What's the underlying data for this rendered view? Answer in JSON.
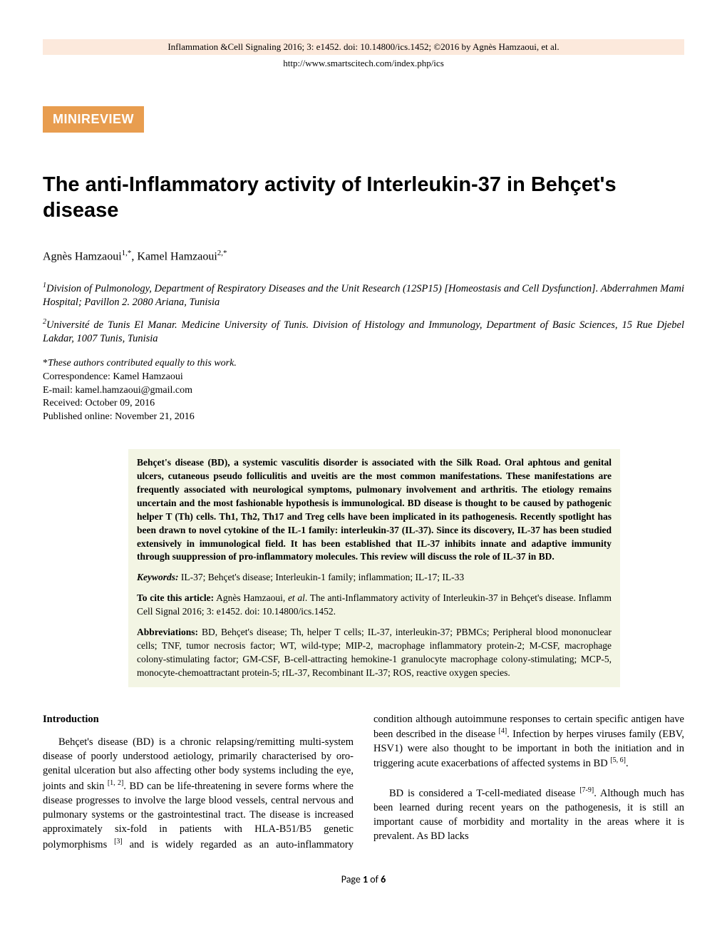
{
  "header": {
    "citation": "Inflammation &Cell Signaling 2016; 3: e1452. doi: 10.14800/ics.1452; ©2016 by Agnès Hamzaoui, et al.",
    "url": "http://www.smartscitech.com/index.php/ics"
  },
  "badge": "MINIREVIEW",
  "title": "The anti-Inflammatory activity of Interleukin-37 in Behçet's disease",
  "authors": {
    "a1_name": "Agnès Hamzaoui",
    "a1_sup": "1,*",
    "sep": ", ",
    "a2_name": "Kamel Hamzaoui",
    "a2_sup": "2,*"
  },
  "affiliations": {
    "a1_sup": "1",
    "a1_text": "Division of Pulmonology, Department of Respiratory Diseases and the Unit Research (12SP15) [Homeostasis and Cell Dysfunction]. Abderrahmen Mami Hospital; Pavillon 2. 2080 Ariana, Tunisia",
    "a2_sup": "2",
    "a2_text": "Université de Tunis El Manar. Medicine University of Tunis. Division of Histology and Immunology, Department of Basic Sciences, 15 Rue Djebel Lakdar, 1007 Tunis, Tunisia"
  },
  "meta": {
    "note_star": "*",
    "note": "These authors contributed equally to this work.",
    "corr_label": "Correspondence: ",
    "corr_name": "Kamel Hamzaoui",
    "email_label": "E-mail: ",
    "email": "kamel.hamzaoui@gmail.com",
    "received_label": "Received: ",
    "received": "October 09, 2016",
    "published_label": "Published online: ",
    "published": "November 21, 2016"
  },
  "abstract": {
    "main": "Behçet's disease (BD), a systemic vasculitis disorder is associated with the Silk Road. Oral aphtous and genital ulcers, cutaneous pseudo folliculitis and uveitis are the most common manifestations. These manifestations are frequently associated with neurological symptoms, pulmonary involvement and arthritis. The etiology remains uncertain and the most fashionable hypothesis is immunological. BD disease is thought to be caused by pathogenic helper T (Th) cells. Th1, Th2, Th17 and Treg cells have been implicated in its pathogenesis. Recently spotlight has been drawn to novel cytokine of the IL-1 family: interleukin-37 (IL-37). Since its discovery, IL-37 has been studied extensively in immunological field. It has been established that IL-37 inhibits innate and adaptive immunity through suuppression of pro-inflammatory molecules. This review will discuss the role of IL-37 in BD.",
    "keywords_label": "Keywords:",
    "keywords": " IL-37; Behçet's disease; Interleukin-1 family; inflammation; IL-17; IL-33",
    "cite_label": "To cite this article:",
    "cite_authors": " Agnès Hamzaoui, ",
    "cite_etal": "et al",
    "cite_rest": ". The anti-Inflammatory activity of Interleukin-37 in Behçet's disease. Inflamm Cell Signal 2016; 3: e1452. doi: 10.14800/ics.1452.",
    "abbrev_label": "Abbreviations:",
    "abbrev": " BD, Behçet's disease; Th, helper T cells; IL-37, interleukin-37; PBMCs; Peripheral blood mononuclear cells; TNF, tumor necrosis factor; WT, wild-type; MIP-2, macrophage inflammatory protein-2; M-CSF, macrophage colony-stimulating factor; GM-CSF, B-cell-attracting hemokine-1 granulocyte macrophage colony-stimulating; MCP-5, monocyte-chemoattractant protein-5; rIL-37, Recombinant IL-37; ROS, reactive oxygen species."
  },
  "body": {
    "intro_head": "Introduction",
    "p1a": "Behçet's disease (BD) is a chronic relapsing/remitting multi-system disease of poorly understood aetiology, primarily characterised by oro-genital ulceration but also affecting other body systems including the eye, joints and skin ",
    "p1_ref1": "[1, 2]",
    "p1b": ". BD can be life-threatening in severe forms where the disease progresses to involve the large blood vessels, central nervous and pulmonary systems or the gastrointestinal tract. The disease is increased approximately six-fold in patients with HLA-B51/B5 genetic polymorphisms ",
    "p1_ref2": "[3]",
    "p1c": " and is widely regarded as an auto-inflammatory condition although autoimmune responses to certain specific antigen have been described in the disease ",
    "p1_ref3": "[4]",
    "p1d": ". Infection by herpes viruses family (EBV, HSV1) were also thought to be important in both the initiation and in triggering acute exacerbations of affected systems in BD ",
    "p1_ref4": "[5, 6]",
    "p1e": ".",
    "p2a": "BD is considered a T-cell-mediated disease ",
    "p2_ref1": "[7-9]",
    "p2b": ". Although much has been learned during recent years on the pathogenesis, it is still an important cause of morbidity and mortality in the areas where it is prevalent. As BD lacks"
  },
  "footer": {
    "pre": "Page ",
    "num": "1",
    "mid": " of ",
    "total": "6"
  },
  "colors": {
    "header_band_bg": "#fce9dc",
    "badge_bg": "#e89d4f",
    "badge_text": "#ffffff",
    "abstract_bg": "#f3f5e4"
  }
}
